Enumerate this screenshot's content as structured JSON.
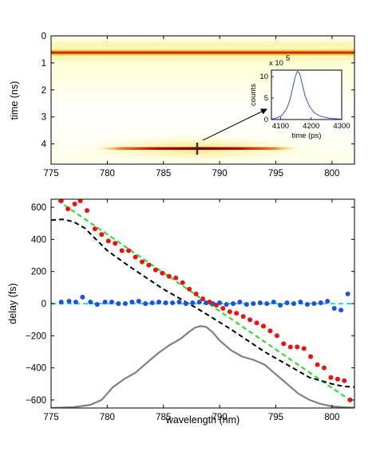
{
  "chart_data": [
    {
      "type": "heatmap",
      "xlabel": "",
      "ylabel": "time (ns)",
      "xlim": [
        775,
        802
      ],
      "ylim": [
        0,
        4.75
      ],
      "y_reversed": true,
      "xticks": [
        "775",
        "780",
        "785",
        "790",
        "795",
        "800"
      ],
      "yticks": [
        "0",
        "1",
        "2",
        "3",
        "4"
      ],
      "colormap": [
        "#ffffff",
        "#ffffc0",
        "#ffd84a",
        "#e06010",
        "#9a0000",
        "#3a0000"
      ],
      "bands": [
        {
          "center_time": 0.62,
          "x_range": [
            775,
            802
          ],
          "peak_intensity": 1.0
        },
        {
          "center_time": 4.17,
          "x_range": [
            779,
            797
          ],
          "peak_intensity": 0.85
        }
      ],
      "marker_x": 788,
      "marker_time_range": [
        3.95,
        4.4
      ]
    },
    {
      "type": "line",
      "xlabel": "time (ps)",
      "ylabel": "counts",
      "multiplier": "x 10",
      "multiplier_exp": "5",
      "xlim": [
        4070,
        4300
      ],
      "ylim": [
        0,
        11.5
      ],
      "xticks": [
        "4100",
        "4200",
        "4300"
      ],
      "yticks": [
        "0",
        "5",
        "10"
      ],
      "series": [
        {
          "color": "#3050e0",
          "x": [
            4070,
            4090,
            4105,
            4120,
            4130,
            4140,
            4148,
            4155,
            4162,
            4170,
            4180,
            4195,
            4210,
            4230,
            4260,
            4300
          ],
          "y": [
            0.1,
            0.4,
            1.0,
            2.5,
            4.5,
            7.5,
            10.0,
            11.2,
            10.8,
            8.5,
            5.5,
            3.0,
            1.6,
            0.8,
            0.3,
            0.1
          ]
        }
      ]
    },
    {
      "type": "scatter",
      "xlabel": "wavelength (nm)",
      "ylabel": "delay (fs)",
      "xlim": [
        775,
        802
      ],
      "ylim": [
        -650,
        650
      ],
      "xticks": [
        "775",
        "780",
        "785",
        "790",
        "795",
        "800"
      ],
      "yticks": [
        "600",
        "400",
        "200",
        "0",
        "−200",
        "−400",
        "−600"
      ],
      "series": [
        {
          "color": "#ee1111",
          "style": "dots",
          "x": [
            775.9,
            776.5,
            777.1,
            777.6,
            778.2,
            778.9,
            779.5,
            780.1,
            780.7,
            781.3,
            781.9,
            782.5,
            783.1,
            783.7,
            784.3,
            784.9,
            785.5,
            786.1,
            786.7,
            787.3,
            787.9,
            788.5,
            789.1,
            789.7,
            790.3,
            790.9,
            791.5,
            792.1,
            792.7,
            793.3,
            793.9,
            794.5,
            795.1,
            795.7,
            796.3,
            796.9,
            797.5,
            798.1,
            798.7,
            799.3,
            799.9,
            800.5,
            801.1,
            801.6
          ],
          "y": [
            640,
            590,
            620,
            640,
            580,
            465,
            430,
            390,
            375,
            330,
            330,
            290,
            260,
            240,
            210,
            190,
            170,
            160,
            130,
            90,
            60,
            30,
            10,
            -10,
            -30,
            -50,
            -60,
            -80,
            -100,
            -120,
            -140,
            -170,
            -200,
            -250,
            -270,
            -270,
            -280,
            -330,
            -380,
            -400,
            -460,
            -470,
            -480,
            -600
          ]
        },
        {
          "color": "#1f50e0",
          "style": "dots",
          "x": [
            775.9,
            776.6,
            777.2,
            777.8,
            778.5,
            779.1,
            779.8,
            780.4,
            781.0,
            781.6,
            782.2,
            782.8,
            783.4,
            784.0,
            784.6,
            785.2,
            785.8,
            786.4,
            787.0,
            787.6,
            788.2,
            788.8,
            789.4,
            790.0,
            790.6,
            791.2,
            791.8,
            792.4,
            793.0,
            793.6,
            794.2,
            794.8,
            795.4,
            796.0,
            796.6,
            797.2,
            797.8,
            798.4,
            799.0,
            799.6,
            800.2,
            800.8,
            801.4
          ],
          "y": [
            10,
            15,
            10,
            40,
            10,
            -5,
            10,
            10,
            0,
            0,
            10,
            15,
            0,
            5,
            10,
            5,
            5,
            10,
            0,
            5,
            10,
            5,
            0,
            5,
            -5,
            0,
            10,
            -5,
            0,
            5,
            0,
            10,
            -10,
            5,
            0,
            10,
            -5,
            0,
            5,
            15,
            -30,
            -40,
            60
          ]
        },
        {
          "color": "#22dd22",
          "style": "dashed",
          "x": [
            775,
            802
          ],
          "y": [
            670,
            -620
          ]
        },
        {
          "color": "#000000",
          "style": "dashed",
          "x": [
            775,
            776,
            777,
            778,
            779,
            780,
            782,
            785,
            788,
            791,
            794,
            797,
            798,
            799,
            800,
            801,
            802
          ],
          "y": [
            520,
            525,
            510,
            470,
            400,
            330,
            230,
            90,
            -30,
            -160,
            -300,
            -420,
            -460,
            -480,
            -500,
            -515,
            -520
          ]
        },
        {
          "color": "#33dddd",
          "style": "dashed",
          "x": [
            775,
            802
          ],
          "y": [
            0,
            0
          ]
        },
        {
          "color": "#808080",
          "style": "solid",
          "x": [
            775,
            777,
            778.5,
            779.5,
            780.5,
            781.5,
            782.5,
            783.5,
            784.5,
            785.5,
            786.5,
            787.2,
            787.8,
            788.3,
            788.8,
            789.4,
            790,
            791,
            792,
            793,
            794,
            795,
            796,
            797,
            798,
            799,
            800,
            801,
            802
          ],
          "y": [
            -650,
            -645,
            -630,
            -600,
            -520,
            -470,
            -430,
            -370,
            -310,
            -260,
            -220,
            -180,
            -150,
            -140,
            -145,
            -180,
            -230,
            -290,
            -330,
            -350,
            -380,
            -440,
            -500,
            -560,
            -600,
            -625,
            -640,
            -645,
            -648
          ]
        }
      ]
    }
  ]
}
